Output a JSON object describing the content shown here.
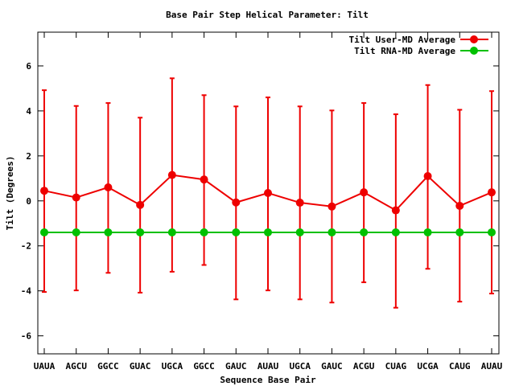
{
  "chart_data": {
    "type": "line",
    "title": "Base Pair Step Helical Parameter: Tilt",
    "xlabel": "Sequence Base Pair",
    "ylabel": "Tilt (Degrees)",
    "ylim": [
      -6.8,
      7.5
    ],
    "yticks": [
      -6,
      -4,
      -2,
      0,
      2,
      4,
      6
    ],
    "grid": false,
    "legend_position": "top-right",
    "categories": [
      "UAUA",
      "AGCU",
      "GGCC",
      "GUAC",
      "UGCA",
      "GGCC",
      "GAUC",
      "AUAU",
      "UGCA",
      "GAUC",
      "ACGU",
      "CUAG",
      "UCGA",
      "CAUG",
      "AUAU"
    ],
    "series": [
      {
        "name": "Tilt User-MD Average",
        "color": "#ee0000",
        "values": [
          0.45,
          0.15,
          0.6,
          -0.18,
          1.15,
          0.95,
          -0.07,
          0.35,
          -0.08,
          -0.25,
          0.38,
          -0.42,
          1.1,
          -0.22,
          0.38
        ],
        "err_low": [
          -4.05,
          -3.98,
          -3.2,
          -4.08,
          -3.15,
          -2.85,
          -4.38,
          -3.98,
          -4.38,
          -4.52,
          -3.62,
          -4.75,
          -3.02,
          -4.48,
          -4.12
        ],
        "err_high": [
          4.92,
          4.22,
          4.35,
          3.7,
          5.45,
          4.7,
          4.2,
          4.6,
          4.2,
          4.02,
          4.35,
          3.85,
          5.15,
          4.05,
          4.88
        ]
      },
      {
        "name": "Tilt RNA-MD Average",
        "color": "#00c000",
        "values": [
          -1.4,
          -1.4,
          -1.4,
          -1.4,
          -1.4,
          -1.4,
          -1.4,
          -1.4,
          -1.4,
          -1.4,
          -1.4,
          -1.4,
          -1.4,
          -1.4,
          -1.4
        ]
      }
    ]
  }
}
